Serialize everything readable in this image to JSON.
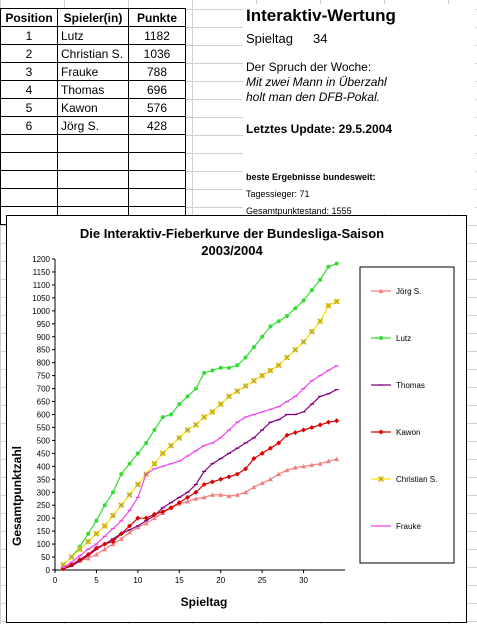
{
  "table": {
    "headers": [
      "Position",
      "Spieler(in)",
      "Punkte"
    ],
    "rows": [
      {
        "pos": "1",
        "name": "Lutz",
        "pts": "1182"
      },
      {
        "pos": "2",
        "name": "Christian S.",
        "pts": "1036"
      },
      {
        "pos": "3",
        "name": "Frauke",
        "pts": "788"
      },
      {
        "pos": "4",
        "name": "Thomas",
        "pts": "696"
      },
      {
        "pos": "5",
        "name": "Kawon",
        "pts": "576"
      },
      {
        "pos": "6",
        "name": "Jörg S.",
        "pts": "428"
      }
    ]
  },
  "info": {
    "title": "Interaktiv-Wertung",
    "matchday_label": "Spieltag",
    "matchday_value": "34",
    "spruch_label": "Der Spruch der Woche:",
    "spruch_line1": "Mit zwei Mann in Überzahl",
    "spruch_line2": "holt man den DFB-Pokal.",
    "last_update": "Letztes Update: 29.5.2004",
    "best_title": "beste Ergebnisse bundesweit:",
    "best_day": "Tagessieger: 71",
    "best_total": "Gesamtpunktestand: 1555"
  },
  "chart_data": {
    "type": "line",
    "title": "Die Interaktiv-Fieberkurve der Bundesliga-Saison",
    "subtitle": "2003/2004",
    "xlabel": "Spieltag",
    "ylabel": "Gesamtpunktzahl",
    "xlim": [
      0,
      35
    ],
    "ylim": [
      0,
      1200
    ],
    "xticks": [
      0,
      5,
      10,
      15,
      20,
      25,
      30
    ],
    "yticks": [
      0,
      50,
      100,
      150,
      200,
      250,
      300,
      350,
      400,
      450,
      500,
      550,
      600,
      650,
      700,
      750,
      800,
      850,
      900,
      950,
      1000,
      1050,
      1100,
      1150,
      1200
    ],
    "grid": false,
    "legend_position": "right",
    "x": [
      1,
      2,
      3,
      4,
      5,
      6,
      7,
      8,
      9,
      10,
      11,
      12,
      13,
      14,
      15,
      16,
      17,
      18,
      19,
      20,
      21,
      22,
      23,
      24,
      25,
      26,
      27,
      28,
      29,
      30,
      31,
      32,
      33,
      34
    ],
    "series": [
      {
        "name": "Jörg S.",
        "color": "#f08080",
        "marker": "triangle",
        "values": [
          10,
          20,
          35,
          45,
          60,
          80,
          100,
          120,
          145,
          165,
          180,
          200,
          220,
          240,
          255,
          265,
          275,
          280,
          290,
          290,
          285,
          290,
          300,
          320,
          335,
          350,
          370,
          385,
          395,
          400,
          405,
          410,
          420,
          428
        ]
      },
      {
        "name": "Lutz",
        "color": "#33dd33",
        "marker": "circle",
        "values": [
          20,
          50,
          90,
          140,
          190,
          250,
          300,
          370,
          410,
          450,
          490,
          540,
          590,
          600,
          640,
          670,
          700,
          760,
          770,
          780,
          780,
          790,
          820,
          860,
          900,
          940,
          960,
          980,
          1010,
          1040,
          1080,
          1120,
          1170,
          1182
        ]
      },
      {
        "name": "Thomas",
        "color": "#800080",
        "marker": "dash",
        "values": [
          5,
          15,
          35,
          55,
          80,
          100,
          120,
          140,
          155,
          170,
          190,
          210,
          240,
          260,
          280,
          300,
          330,
          380,
          410,
          430,
          450,
          470,
          490,
          510,
          540,
          570,
          580,
          600,
          600,
          610,
          640,
          670,
          680,
          696
        ]
      },
      {
        "name": "Kawon",
        "color": "#dd0000",
        "marker": "diamond",
        "values": [
          5,
          20,
          40,
          60,
          85,
          100,
          110,
          140,
          170,
          200,
          200,
          215,
          225,
          240,
          260,
          280,
          300,
          330,
          340,
          350,
          360,
          370,
          390,
          430,
          450,
          470,
          490,
          520,
          530,
          540,
          550,
          560,
          570,
          576
        ]
      },
      {
        "name": "Christian S.",
        "color": "#ffdd00",
        "marker": "square-x",
        "values": [
          20,
          50,
          80,
          110,
          140,
          170,
          210,
          250,
          290,
          330,
          370,
          410,
          450,
          480,
          510,
          540,
          560,
          590,
          610,
          640,
          670,
          690,
          710,
          730,
          750,
          770,
          790,
          820,
          850,
          880,
          920,
          960,
          1020,
          1036
        ]
      },
      {
        "name": "Frauke",
        "color": "#ee44ee",
        "marker": "dash",
        "values": [
          10,
          30,
          55,
          80,
          100,
          130,
          160,
          190,
          230,
          280,
          370,
          390,
          400,
          410,
          420,
          440,
          460,
          480,
          490,
          510,
          540,
          570,
          590,
          600,
          610,
          620,
          630,
          650,
          670,
          700,
          730,
          750,
          770,
          788
        ]
      }
    ]
  }
}
